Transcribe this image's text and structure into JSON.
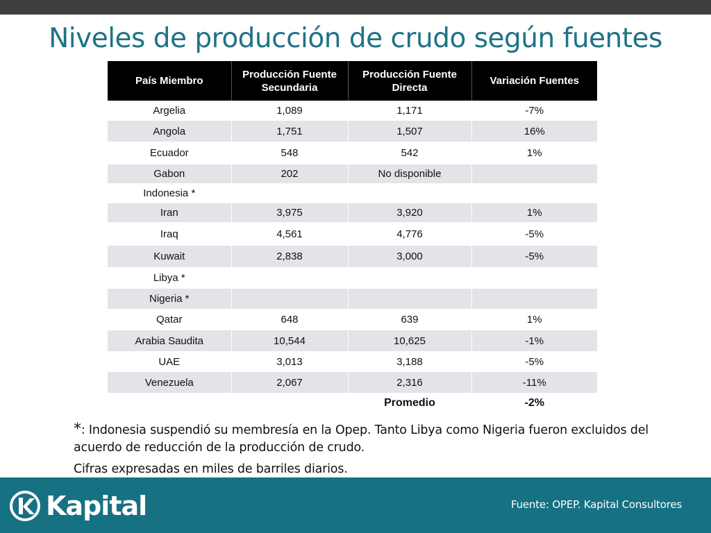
{
  "title": "Niveles de producción de crudo según fuentes",
  "table": {
    "headers": [
      "País Miembro",
      "Producción Fuente Secundaria",
      "Producción Fuente Directa",
      "Variación Fuentes"
    ],
    "rows": [
      [
        "Argelia",
        "1,089",
        "1,171",
        "-7%"
      ],
      [
        "Angola",
        "1,751",
        "1,507",
        "16%"
      ],
      [
        "Ecuador",
        "548",
        "542",
        "1%"
      ],
      [
        "Gabon",
        "202",
        "No disponible",
        ""
      ],
      [
        "Indonesia *",
        "",
        "",
        ""
      ],
      [
        "Iran",
        "3,975",
        "3,920",
        "1%"
      ],
      [
        "Iraq",
        "4,561",
        "4,776",
        "-5%"
      ],
      [
        "Kuwait",
        "2,838",
        "3,000",
        "-5%"
      ],
      [
        "Libya *",
        "",
        "",
        ""
      ],
      [
        "Nigeria *",
        "",
        "",
        ""
      ],
      [
        "Qatar",
        "648",
        "639",
        "1%"
      ],
      [
        "Arabia Saudita",
        "10,544",
        "10,625",
        "-1%"
      ],
      [
        "UAE",
        "3,013",
        "3,188",
        "-5%"
      ],
      [
        "Venezuela",
        "2,067",
        "2,316",
        "-11%"
      ]
    ],
    "summary_label": "Promedio",
    "summary_value": "-2%"
  },
  "footnote": {
    "star": "*",
    "text": ": Indonesia suspendió su membresía en la Opep. Tanto Libya como Nigeria fueron excluidos del acuerdo de reducción de la producción de crudo."
  },
  "units_note": "Cifras expresadas en miles de barriles diarios.",
  "footer": {
    "logo_text": "Kapital",
    "logo_icon": "kapital-k-icon",
    "source": "Fuente: OPEP. Kapital Consultores",
    "color": "#167182"
  },
  "colors": {
    "title": "#1f7385",
    "header_bg": "#000000",
    "row_alt_bg": "#e3e3e8",
    "top_bar": "#3f3f3f"
  }
}
